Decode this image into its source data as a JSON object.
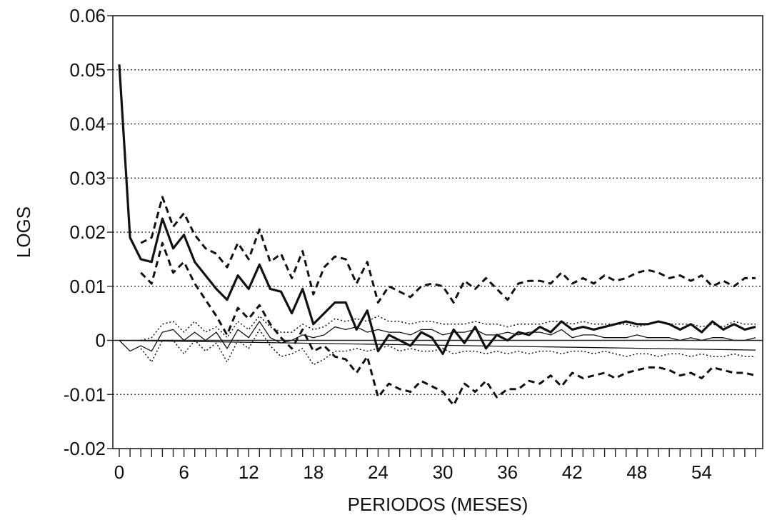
{
  "chart_data": {
    "type": "line",
    "title": "",
    "xlabel": "PERIODOS (MESES)",
    "ylabel": "LOGS",
    "xlim": [
      0,
      59
    ],
    "ylim": [
      -0.02,
      0.06
    ],
    "x_ticks": [
      0,
      6,
      12,
      18,
      24,
      30,
      36,
      42,
      48,
      54
    ],
    "x_tick_labels": [
      "0",
      "6",
      "12",
      "18",
      "24",
      "30",
      "36",
      "42",
      "48",
      "54"
    ],
    "y_ticks": [
      -0.02,
      -0.01,
      0,
      0.01,
      0.02,
      0.03,
      0.04,
      0.05,
      0.06
    ],
    "y_tick_labels": [
      "-0.02",
      "-0.01",
      "0",
      "0.01",
      "0.02",
      "0.03",
      "0.04",
      "0.05",
      "0.06"
    ],
    "grid": {
      "y_dotted": true,
      "x": false
    },
    "legend": "none",
    "series": [
      {
        "style": "thick-solid",
        "color": "#111111",
        "x": [
          0,
          1,
          2,
          3,
          4,
          5,
          6,
          7,
          8,
          9,
          10,
          11,
          12,
          13,
          14,
          15,
          16,
          17,
          18,
          19,
          20,
          21,
          22,
          23,
          24,
          25,
          26,
          27,
          28,
          29,
          30,
          31,
          32,
          33,
          34,
          35,
          36,
          37,
          38,
          39,
          40,
          41,
          42,
          43,
          44,
          45,
          46,
          47,
          48,
          49,
          50,
          51,
          52,
          53,
          54,
          55,
          56,
          57,
          58,
          59
        ],
        "values": [
          0.051,
          0.019,
          0.015,
          0.0145,
          0.0225,
          0.017,
          0.0195,
          0.0145,
          0.012,
          0.0095,
          0.0075,
          0.012,
          0.0095,
          0.014,
          0.0095,
          0.009,
          0.005,
          0.0095,
          0.003,
          0.005,
          0.007,
          0.007,
          0.002,
          0.0055,
          -0.002,
          0.001,
          0.0,
          -0.001,
          0.0015,
          0.0005,
          -0.0025,
          0.002,
          -0.0005,
          0.0025,
          -0.0015,
          0.001,
          0.0,
          0.0015,
          0.001,
          0.0025,
          0.0015,
          0.0035,
          0.002,
          0.0025,
          0.002,
          0.0025,
          0.003,
          0.0035,
          0.003,
          0.003,
          0.0035,
          0.003,
          0.002,
          0.003,
          0.0015,
          0.0035,
          0.002,
          0.003,
          0.002,
          0.0025
        ]
      },
      {
        "style": "thick-dashed",
        "color": "#111111",
        "x": [
          2,
          3,
          4,
          5,
          6,
          7,
          8,
          9,
          10,
          11,
          12,
          13,
          14,
          15,
          16,
          17,
          18,
          19,
          20,
          21,
          22,
          23,
          24,
          25,
          26,
          27,
          28,
          29,
          30,
          31,
          32,
          33,
          34,
          35,
          36,
          37,
          38,
          39,
          40,
          41,
          42,
          43,
          44,
          45,
          46,
          47,
          48,
          49,
          50,
          51,
          52,
          53,
          54,
          55,
          56,
          57,
          58,
          59
        ],
        "values": [
          0.018,
          0.019,
          0.0265,
          0.021,
          0.0235,
          0.0195,
          0.017,
          0.016,
          0.0135,
          0.018,
          0.015,
          0.0205,
          0.0145,
          0.016,
          0.0115,
          0.0165,
          0.0085,
          0.0135,
          0.0155,
          0.015,
          0.0105,
          0.0145,
          0.007,
          0.01,
          0.009,
          0.008,
          0.01,
          0.0105,
          0.01,
          0.007,
          0.011,
          0.0095,
          0.0115,
          0.0095,
          0.0075,
          0.0105,
          0.011,
          0.011,
          0.0105,
          0.0125,
          0.0105,
          0.0115,
          0.0105,
          0.012,
          0.011,
          0.0115,
          0.0125,
          0.013,
          0.0125,
          0.0115,
          0.012,
          0.011,
          0.012,
          0.01,
          0.011,
          0.01,
          0.0115,
          0.0115
        ]
      },
      {
        "style": "thick-dashed",
        "color": "#111111",
        "x": [
          2,
          3,
          4,
          5,
          6,
          7,
          8,
          9,
          10,
          11,
          12,
          13,
          14,
          15,
          16,
          17,
          18,
          19,
          20,
          21,
          22,
          23,
          24,
          25,
          26,
          27,
          28,
          29,
          30,
          31,
          32,
          33,
          34,
          35,
          36,
          37,
          38,
          39,
          40,
          41,
          42,
          43,
          44,
          45,
          46,
          47,
          48,
          49,
          50,
          51,
          52,
          53,
          54,
          55,
          56,
          57,
          58,
          59
        ],
        "values": [
          0.0125,
          0.0105,
          0.018,
          0.0125,
          0.0145,
          0.0105,
          0.0075,
          0.0045,
          0.001,
          0.006,
          0.004,
          0.0065,
          0.003,
          0.0005,
          -0.0015,
          0.002,
          -0.002,
          -0.001,
          -0.003,
          -0.0035,
          -0.006,
          -0.003,
          -0.0105,
          -0.008,
          -0.009,
          -0.0095,
          -0.0075,
          -0.0085,
          -0.0095,
          -0.012,
          -0.008,
          -0.0095,
          -0.0075,
          -0.0105,
          -0.009,
          -0.009,
          -0.0075,
          -0.008,
          -0.0065,
          -0.0085,
          -0.006,
          -0.007,
          -0.0065,
          -0.006,
          -0.007,
          -0.006,
          -0.0055,
          -0.005,
          -0.005,
          -0.0055,
          -0.0065,
          -0.006,
          -0.007,
          -0.005,
          -0.0055,
          -0.006,
          -0.006,
          -0.0065
        ]
      },
      {
        "style": "thin-solid",
        "color": "#111111",
        "x": [
          0,
          1,
          2,
          3,
          4,
          5,
          6,
          7,
          8,
          9,
          10,
          11,
          12,
          13,
          14,
          15,
          16,
          17,
          18,
          19,
          20,
          21,
          22,
          23,
          24,
          25,
          26,
          27,
          28,
          29,
          30,
          31,
          32,
          33,
          34,
          35,
          36,
          37,
          38,
          39,
          40,
          41,
          42,
          43,
          44,
          45,
          46,
          47,
          48,
          49,
          50,
          51,
          52,
          53,
          54,
          55,
          56,
          57,
          58,
          59
        ],
        "values": [
          0.0,
          -0.002,
          -0.001,
          -0.002,
          0.0015,
          0.002,
          0.0,
          0.0015,
          0.0,
          0.0015,
          -0.0015,
          0.002,
          0.0005,
          0.0035,
          0.0005,
          -0.0005,
          0.0,
          0.001,
          0.0005,
          0.001,
          0.0025,
          0.002,
          0.0025,
          0.0015,
          0.002,
          0.0015,
          0.0015,
          0.001,
          0.002,
          0.002,
          0.001,
          0.0015,
          0.0015,
          0.002,
          0.001,
          0.001,
          0.0015,
          0.001,
          0.0015,
          0.0015,
          0.001,
          0.002,
          0.0005,
          0.001,
          0.001,
          0.0005,
          0.0005,
          0.0005,
          0.001,
          0.0005,
          0.0005,
          0.0005,
          0.0,
          0.0005,
          0.0,
          0.0005,
          0.0005,
          0.0,
          0.0,
          0.0005
        ]
      },
      {
        "style": "thin-dotted",
        "color": "#111111",
        "x": [
          2,
          3,
          4,
          5,
          6,
          7,
          8,
          9,
          10,
          11,
          12,
          13,
          14,
          15,
          16,
          17,
          18,
          19,
          20,
          21,
          22,
          23,
          24,
          25,
          26,
          27,
          28,
          29,
          30,
          31,
          32,
          33,
          34,
          35,
          36,
          37,
          38,
          39,
          40,
          41,
          42,
          43,
          44,
          45,
          46,
          47,
          48,
          49,
          50,
          51,
          52,
          53,
          54,
          55,
          56,
          57,
          58,
          59
        ],
        "values": [
          0.0,
          0.0005,
          0.003,
          0.0035,
          0.0015,
          0.0035,
          0.0015,
          0.0025,
          0.0005,
          0.0035,
          0.002,
          0.0045,
          0.0025,
          0.0015,
          0.0015,
          0.003,
          0.002,
          0.0025,
          0.004,
          0.0035,
          0.004,
          0.0035,
          0.0045,
          0.0035,
          0.0035,
          0.003,
          0.0035,
          0.0035,
          0.003,
          0.003,
          0.003,
          0.0035,
          0.003,
          0.003,
          0.0025,
          0.003,
          0.003,
          0.003,
          0.0035,
          0.0035,
          0.003,
          0.0035,
          0.003,
          0.003,
          0.003,
          0.003,
          0.0025,
          0.003,
          0.0035,
          0.003,
          0.003,
          0.003,
          0.0025,
          0.003,
          0.0025,
          0.0035,
          0.003,
          0.003
        ]
      },
      {
        "style": "thin-dotted",
        "color": "#111111",
        "x": [
          2,
          3,
          4,
          5,
          6,
          7,
          8,
          9,
          10,
          11,
          12,
          13,
          14,
          15,
          16,
          17,
          18,
          19,
          20,
          21,
          22,
          23,
          24,
          25,
          26,
          27,
          28,
          29,
          30,
          31,
          32,
          33,
          34,
          35,
          36,
          37,
          38,
          39,
          40,
          41,
          42,
          43,
          44,
          45,
          46,
          47,
          48,
          49,
          50,
          51,
          52,
          53,
          54,
          55,
          56,
          57,
          58,
          59
        ],
        "values": [
          -0.0015,
          -0.004,
          0.0,
          0.0,
          -0.0025,
          0.0,
          -0.002,
          -0.0005,
          -0.004,
          0.0,
          -0.0015,
          0.002,
          -0.001,
          -0.003,
          -0.0025,
          -0.0015,
          -0.0045,
          -0.0035,
          -0.002,
          -0.002,
          -0.0015,
          -0.002,
          -0.0015,
          -0.001,
          -0.002,
          -0.0015,
          -0.002,
          -0.002,
          -0.0015,
          -0.0025,
          -0.002,
          -0.002,
          -0.0025,
          -0.002,
          -0.0025,
          -0.002,
          -0.0025,
          -0.002,
          -0.002,
          -0.0025,
          -0.002,
          -0.002,
          -0.0025,
          -0.002,
          -0.0025,
          -0.003,
          -0.0025,
          -0.0025,
          -0.003,
          -0.0025,
          -0.0025,
          -0.003,
          -0.0025,
          -0.003,
          -0.003,
          -0.0025,
          -0.003,
          -0.003
        ]
      },
      {
        "style": "thin-solid",
        "color": "#111111",
        "x": [
          0,
          59
        ],
        "values": [
          0.0,
          -0.0018
        ]
      }
    ]
  }
}
